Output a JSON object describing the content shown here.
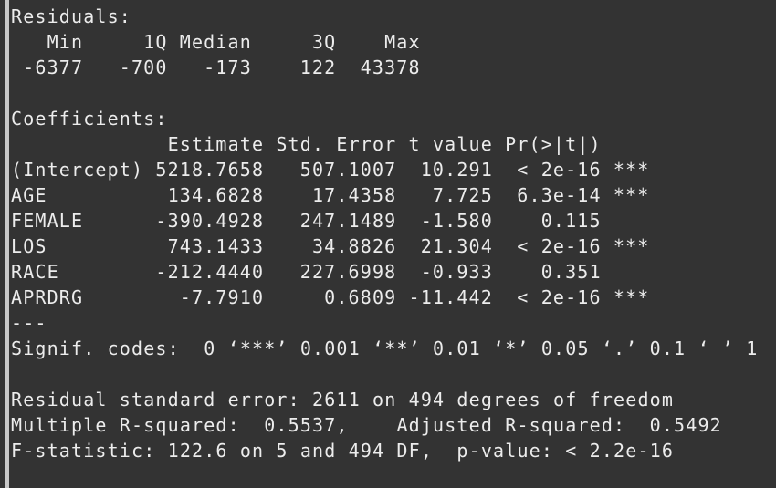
{
  "residuals": {
    "title": "Residuals:",
    "headers": [
      "Min",
      "1Q",
      "Median",
      "3Q",
      "Max"
    ],
    "values": [
      "-6377",
      "-700",
      "-173",
      "122",
      "43378"
    ]
  },
  "coefficients": {
    "title": "Coefficients:",
    "headers": [
      "Estimate",
      "Std. Error",
      "t value",
      "Pr(>|t|)"
    ],
    "rows": [
      [
        "(Intercept)",
        "5218.7658",
        "507.1007",
        "10.291",
        "< 2e-16",
        "***"
      ],
      [
        "AGE",
        "134.6828",
        "17.4358",
        "7.725",
        "6.3e-14",
        "***"
      ],
      [
        "FEMALE",
        "-390.4928",
        "247.1489",
        "-1.580",
        "0.115",
        ""
      ],
      [
        "LOS",
        "743.1433",
        "34.8826",
        "21.304",
        "< 2e-16",
        "***"
      ],
      [
        "RACE",
        "-212.4440",
        "227.6998",
        "-0.933",
        "0.351",
        ""
      ],
      [
        "APRDRG",
        "-7.7910",
        "0.6809",
        "-11.442",
        "< 2e-16",
        "***"
      ]
    ]
  },
  "separator": "---",
  "signif_codes": "Signif. codes:  0 ‘***’ 0.001 ‘**’ 0.01 ‘*’ 0.05 ‘.’ 0.1 ‘ ’ 1",
  "summary": [
    "Residual standard error: 2611 on 494 degrees of freedom",
    "Multiple R-squared:  0.5537,\tAdjusted R-squared:  0.5492",
    "F-statistic: 122.6 on 5 and 494 DF,  p-value: < 2.2e-16"
  ]
}
